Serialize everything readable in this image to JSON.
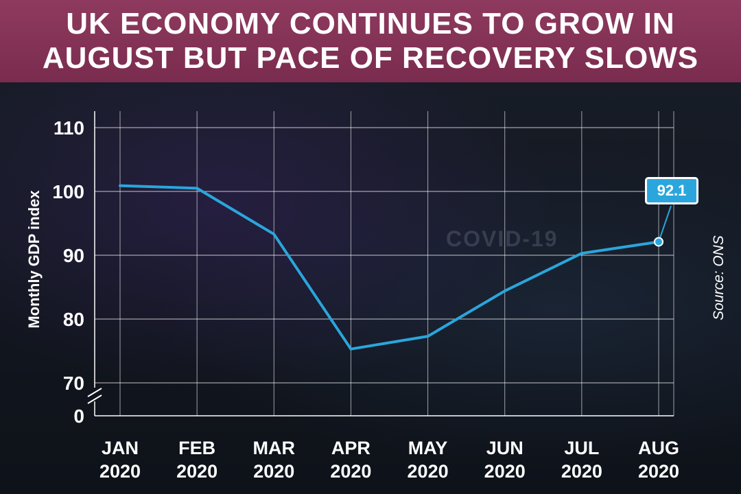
{
  "header": {
    "title_line1": "UK ECONOMY CONTINUES TO GROW IN",
    "title_line2": "AUGUST BUT PACE OF RECOVERY SLOWS"
  },
  "source": "Source: ONS",
  "background_text": "COVID-19",
  "colors": {
    "header": "#862f57",
    "line": "#2aa6dc",
    "background": "#121720"
  },
  "chart_data": {
    "type": "line",
    "title": "UK ECONOMY CONTINUES TO GROW IN AUGUST BUT PACE OF RECOVERY SLOWS",
    "ylabel": "Monthly GDP index",
    "xlabel": "",
    "categories": [
      [
        "JAN",
        "2020"
      ],
      [
        "FEB",
        "2020"
      ],
      [
        "MAR",
        "2020"
      ],
      [
        "APR",
        "2020"
      ],
      [
        "MAY",
        "2020"
      ],
      [
        "JUN",
        "2020"
      ],
      [
        "JUL",
        "2020"
      ],
      [
        "AUG",
        "2020"
      ]
    ],
    "series": [
      {
        "values": [
          100.9,
          100.5,
          93.3,
          75.3,
          77.3,
          84.4,
          90.3,
          92.1
        ]
      }
    ],
    "ylim": [
      70,
      110
    ],
    "yticks": [
      "0",
      "70",
      "80",
      "90",
      "100",
      "110"
    ],
    "axis_break": true,
    "grid": true,
    "annotation": {
      "label": "92.1",
      "category_index": 7
    }
  }
}
